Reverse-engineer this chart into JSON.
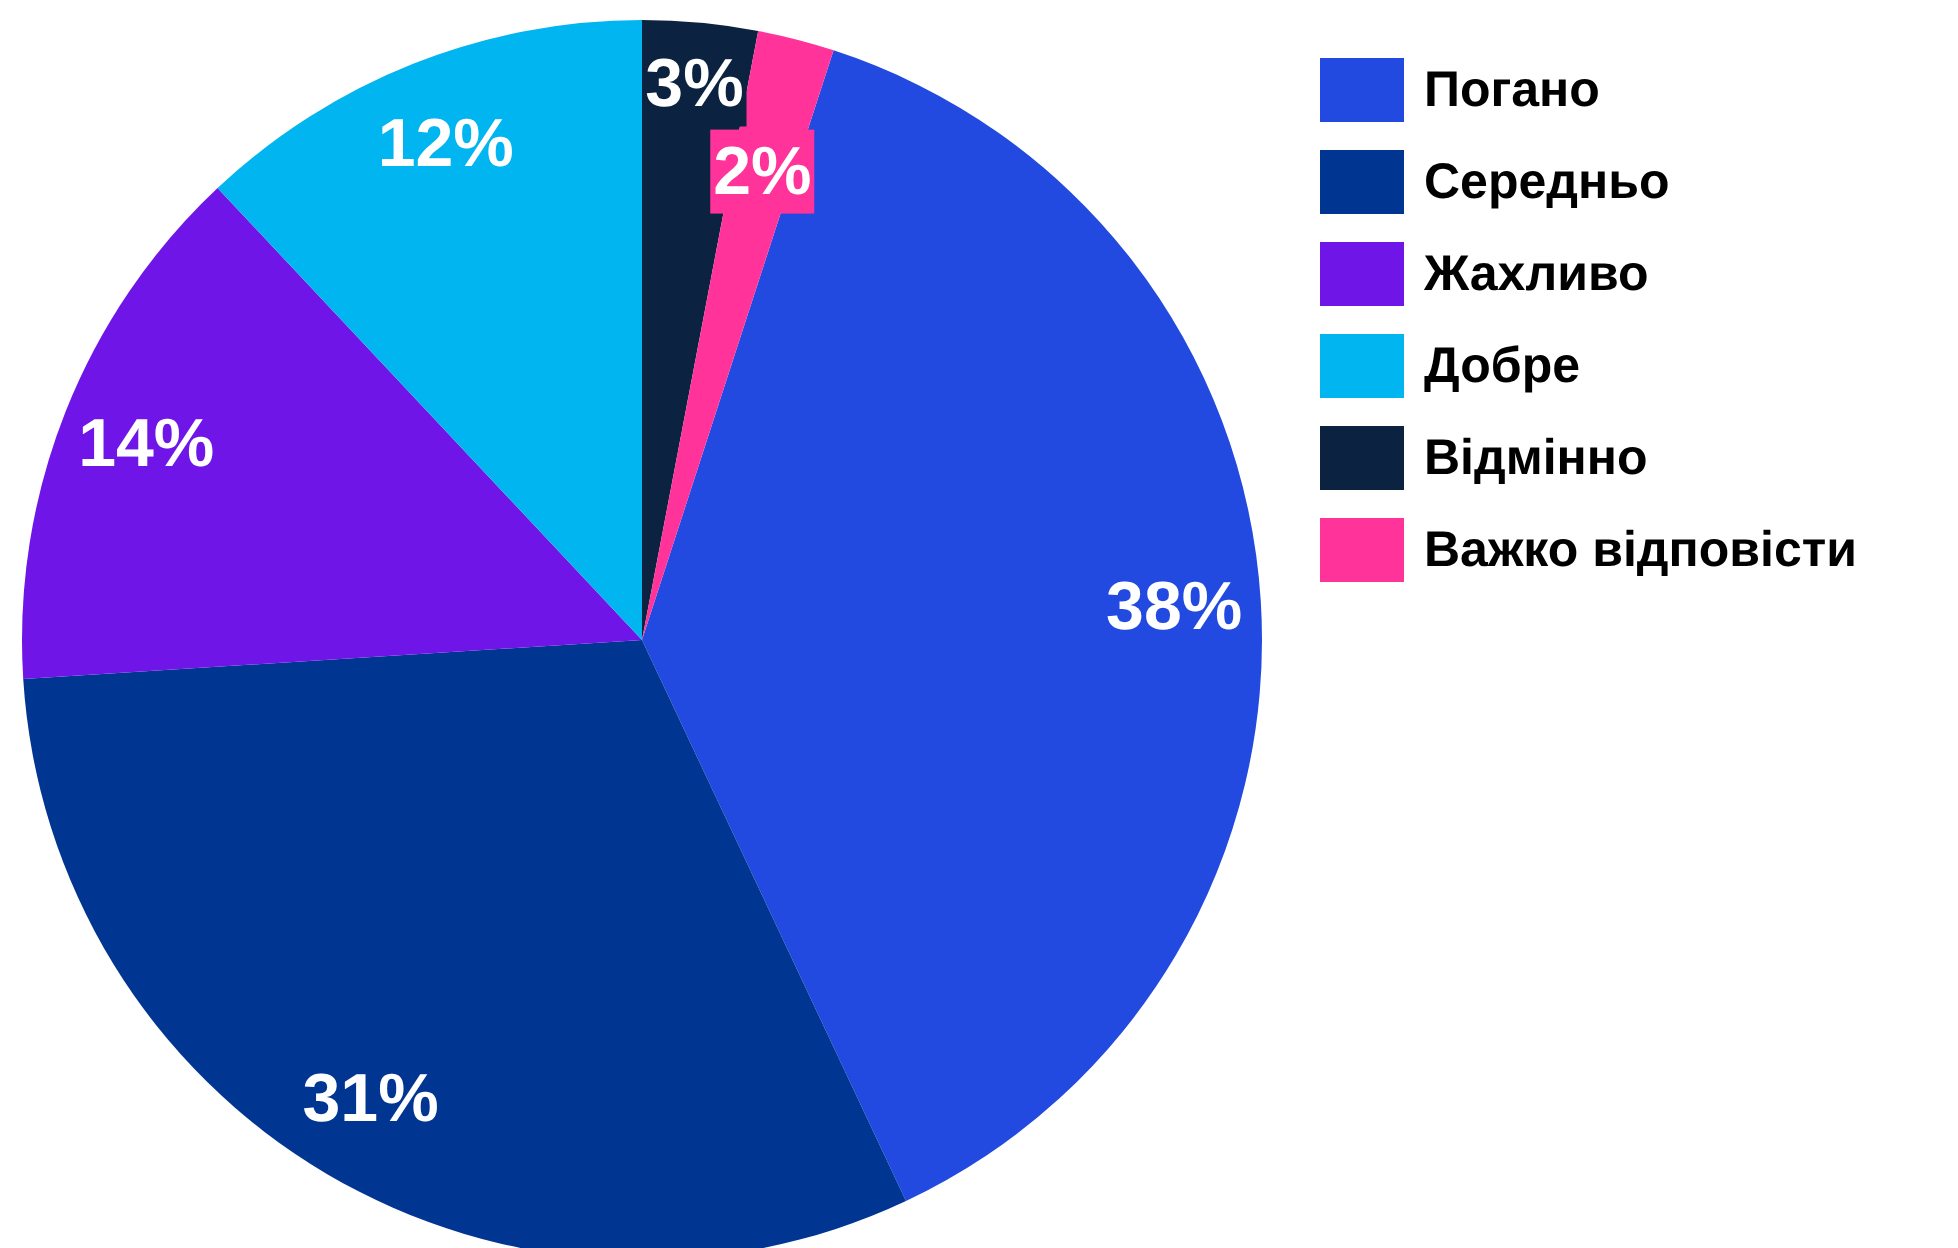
{
  "chart_data": {
    "type": "pie",
    "categories": [
      "Погано",
      "Середньо",
      "Жахливо",
      "Добре",
      "Відмінно",
      "Важко відповісти"
    ],
    "values": [
      38,
      31,
      14,
      12,
      3,
      2
    ],
    "colors": [
      "#224ae0",
      "#003591",
      "#7015e8",
      "#00b5f0",
      "#0b2240",
      "#ff3399"
    ],
    "value_labels": [
      "38%",
      "31%",
      "14%",
      "12%",
      "3%",
      "2%"
    ],
    "legend": "top right"
  }
}
